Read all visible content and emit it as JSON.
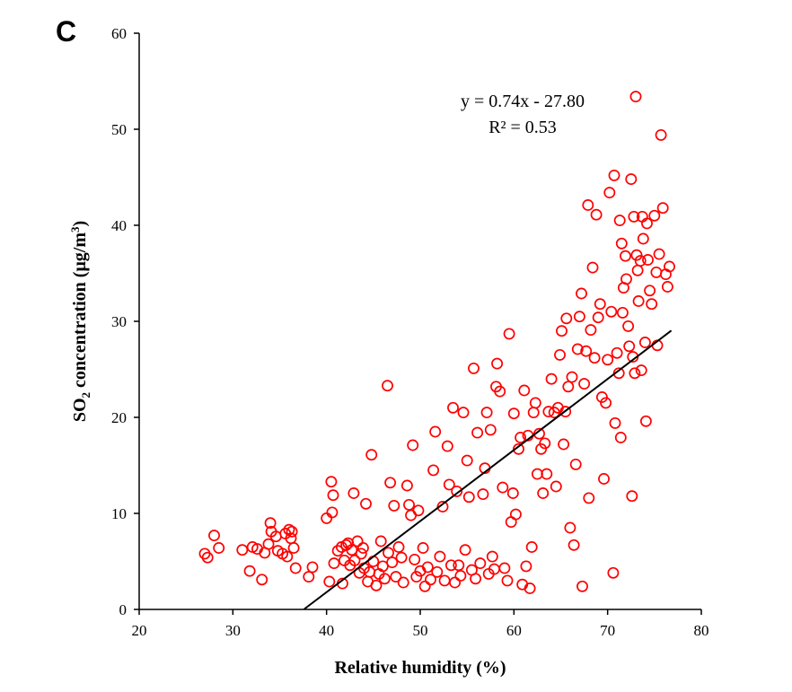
{
  "chart_data": {
    "type": "scatter",
    "panel_label": "C",
    "xlabel": "Relative humidity (%)",
    "ylabel": "SO",
    "ylabel_sub": "2",
    "ylabel_rest": " concentration (μg/m",
    "ylabel_sup": "3",
    "ylabel_end": ")",
    "xlim": [
      20,
      80
    ],
    "ylim": [
      0,
      60
    ],
    "xticks": [
      "20",
      "30",
      "40",
      "50",
      "60",
      "70",
      "80"
    ],
    "yticks": [
      "0",
      "10",
      "20",
      "30",
      "40",
      "50",
      "60"
    ],
    "marker_color": "#ff0000",
    "line_color": "#000000",
    "grid": false,
    "trendline": {
      "slope": 0.74,
      "intercept": -27.8,
      "x_range": [
        37.6,
        76.8
      ],
      "equation": "y = 0.74x - 27.80",
      "r2_label": "R² = 0.53"
    },
    "points": [
      [
        27,
        5.8
      ],
      [
        27.3,
        5.4
      ],
      [
        28,
        7.7
      ],
      [
        28.5,
        6.4
      ],
      [
        31,
        6.2
      ],
      [
        31.8,
        4.0
      ],
      [
        32.1,
        6.5
      ],
      [
        32.6,
        6.3
      ],
      [
        33.1,
        3.1
      ],
      [
        33.4,
        5.9
      ],
      [
        33.8,
        6.8
      ],
      [
        34,
        9.0
      ],
      [
        34.1,
        8.1
      ],
      [
        34.6,
        7.6
      ],
      [
        34.8,
        6.1
      ],
      [
        35.3,
        5.8
      ],
      [
        35.6,
        7.9
      ],
      [
        35.8,
        5.5
      ],
      [
        36,
        8.3
      ],
      [
        36.2,
        7.4
      ],
      [
        36.3,
        8.1
      ],
      [
        36.5,
        6.4
      ],
      [
        36.7,
        4.3
      ],
      [
        38.1,
        3.4
      ],
      [
        38.5,
        4.4
      ],
      [
        40,
        9.5
      ],
      [
        40.3,
        2.9
      ],
      [
        40.5,
        13.3
      ],
      [
        40.6,
        10.1
      ],
      [
        40.7,
        11.9
      ],
      [
        40.8,
        4.8
      ],
      [
        41.2,
        6.1
      ],
      [
        41.6,
        6.5
      ],
      [
        41.7,
        2.7
      ],
      [
        41.9,
        5.1
      ],
      [
        42.1,
        6.7
      ],
      [
        42.3,
        6.9
      ],
      [
        42.5,
        4.6
      ],
      [
        42.7,
        6.2
      ],
      [
        42.9,
        12.1
      ],
      [
        43,
        5.1
      ],
      [
        43.3,
        7.1
      ],
      [
        43.5,
        3.8
      ],
      [
        43.7,
        5.8
      ],
      [
        43.9,
        6.4
      ],
      [
        44,
        4.3
      ],
      [
        44.2,
        11.0
      ],
      [
        44.4,
        2.9
      ],
      [
        44.6,
        3.9
      ],
      [
        44.8,
        16.1
      ],
      [
        45,
        5.0
      ],
      [
        45.3,
        2.5
      ],
      [
        45.6,
        3.7
      ],
      [
        45.8,
        7.1
      ],
      [
        46,
        4.5
      ],
      [
        46.2,
        3.2
      ],
      [
        46.5,
        23.3
      ],
      [
        46.6,
        5.9
      ],
      [
        46.8,
        13.2
      ],
      [
        47,
        4.9
      ],
      [
        47.2,
        10.8
      ],
      [
        47.4,
        3.4
      ],
      [
        47.7,
        6.5
      ],
      [
        48,
        5.4
      ],
      [
        48.2,
        2.8
      ],
      [
        48.6,
        12.9
      ],
      [
        48.8,
        10.9
      ],
      [
        49,
        9.8
      ],
      [
        49.2,
        17.1
      ],
      [
        49.4,
        5.2
      ],
      [
        49.6,
        3.4
      ],
      [
        49.8,
        10.3
      ],
      [
        50,
        4.0
      ],
      [
        50.3,
        6.4
      ],
      [
        50.5,
        2.4
      ],
      [
        50.8,
        4.4
      ],
      [
        51.1,
        3.1
      ],
      [
        51.4,
        14.5
      ],
      [
        51.6,
        18.5
      ],
      [
        51.8,
        3.9
      ],
      [
        52.1,
        5.5
      ],
      [
        52.4,
        10.7
      ],
      [
        52.6,
        3.0
      ],
      [
        52.9,
        17.0
      ],
      [
        53.1,
        13.0
      ],
      [
        53.3,
        4.6
      ],
      [
        53.5,
        21.0
      ],
      [
        53.7,
        2.8
      ],
      [
        53.9,
        12.3
      ],
      [
        54.1,
        4.6
      ],
      [
        54.3,
        3.5
      ],
      [
        54.6,
        20.5
      ],
      [
        54.8,
        6.2
      ],
      [
        55,
        15.5
      ],
      [
        55.2,
        11.7
      ],
      [
        55.5,
        4.1
      ],
      [
        55.7,
        25.1
      ],
      [
        55.9,
        3.2
      ],
      [
        56.1,
        18.4
      ],
      [
        56.4,
        4.8
      ],
      [
        56.7,
        12.0
      ],
      [
        56.9,
        14.7
      ],
      [
        57.1,
        20.5
      ],
      [
        57.3,
        3.7
      ],
      [
        57.5,
        18.7
      ],
      [
        57.7,
        5.5
      ],
      [
        57.9,
        4.2
      ],
      [
        58.1,
        23.2
      ],
      [
        58.2,
        25.6
      ],
      [
        58.5,
        22.7
      ],
      [
        58.8,
        12.7
      ],
      [
        59,
        4.3
      ],
      [
        59.3,
        3.0
      ],
      [
        59.5,
        28.7
      ],
      [
        59.7,
        9.1
      ],
      [
        59.9,
        12.1
      ],
      [
        60,
        20.4
      ],
      [
        60.2,
        9.9
      ],
      [
        60.5,
        16.7
      ],
      [
        60.7,
        17.9
      ],
      [
        60.9,
        2.6
      ],
      [
        61.1,
        22.8
      ],
      [
        61.3,
        4.5
      ],
      [
        61.5,
        18.1
      ],
      [
        61.7,
        2.2
      ],
      [
        61.9,
        6.5
      ],
      [
        62.1,
        20.5
      ],
      [
        62.3,
        21.5
      ],
      [
        62.5,
        14.1
      ],
      [
        62.7,
        18.3
      ],
      [
        62.9,
        16.7
      ],
      [
        63.1,
        12.1
      ],
      [
        63.3,
        17.3
      ],
      [
        63.5,
        14.1
      ],
      [
        63.7,
        20.6
      ],
      [
        64,
        24.0
      ],
      [
        64.3,
        20.5
      ],
      [
        64.5,
        12.8
      ],
      [
        64.7,
        21.0
      ],
      [
        64.9,
        26.5
      ],
      [
        65.1,
        29.0
      ],
      [
        65.3,
        17.2
      ],
      [
        65.5,
        20.6
      ],
      [
        65.6,
        30.3
      ],
      [
        65.8,
        23.2
      ],
      [
        66,
        8.5
      ],
      [
        66.2,
        24.2
      ],
      [
        66.4,
        6.7
      ],
      [
        66.6,
        15.1
      ],
      [
        66.8,
        27.1
      ],
      [
        67,
        30.5
      ],
      [
        67.2,
        32.9
      ],
      [
        67.3,
        2.4
      ],
      [
        67.5,
        23.5
      ],
      [
        67.7,
        26.9
      ],
      [
        67.9,
        42.1
      ],
      [
        68,
        11.6
      ],
      [
        68.2,
        29.1
      ],
      [
        68.4,
        35.6
      ],
      [
        68.6,
        26.2
      ],
      [
        68.8,
        41.1
      ],
      [
        69,
        30.4
      ],
      [
        69.2,
        31.8
      ],
      [
        69.4,
        22.1
      ],
      [
        69.6,
        13.6
      ],
      [
        69.8,
        21.5
      ],
      [
        70,
        26.0
      ],
      [
        70.2,
        43.4
      ],
      [
        70.4,
        31.0
      ],
      [
        70.6,
        3.8
      ],
      [
        70.7,
        45.2
      ],
      [
        70.8,
        19.4
      ],
      [
        71,
        26.7
      ],
      [
        71.2,
        24.6
      ],
      [
        71.3,
        40.5
      ],
      [
        71.4,
        17.9
      ],
      [
        71.5,
        38.1
      ],
      [
        71.6,
        30.9
      ],
      [
        71.7,
        33.5
      ],
      [
        71.9,
        36.8
      ],
      [
        72,
        34.4
      ],
      [
        72.2,
        29.5
      ],
      [
        72.3,
        27.4
      ],
      [
        72.5,
        44.8
      ],
      [
        72.6,
        11.8
      ],
      [
        72.7,
        26.3
      ],
      [
        72.8,
        40.9
      ],
      [
        72.9,
        24.6
      ],
      [
        73,
        53.4
      ],
      [
        73.1,
        36.9
      ],
      [
        73.2,
        35.3
      ],
      [
        73.3,
        32.1
      ],
      [
        73.5,
        36.3
      ],
      [
        73.6,
        24.9
      ],
      [
        73.7,
        40.9
      ],
      [
        73.8,
        38.6
      ],
      [
        74,
        27.8
      ],
      [
        74.1,
        19.6
      ],
      [
        74.2,
        40.2
      ],
      [
        74.3,
        36.4
      ],
      [
        74.5,
        33.2
      ],
      [
        74.7,
        31.8
      ],
      [
        75,
        41.0
      ],
      [
        75.2,
        35.1
      ],
      [
        75.3,
        27.5
      ],
      [
        75.5,
        37.0
      ],
      [
        75.7,
        49.4
      ],
      [
        75.9,
        41.8
      ],
      [
        76.2,
        34.9
      ],
      [
        76.4,
        33.6
      ],
      [
        76.6,
        35.7
      ]
    ]
  }
}
